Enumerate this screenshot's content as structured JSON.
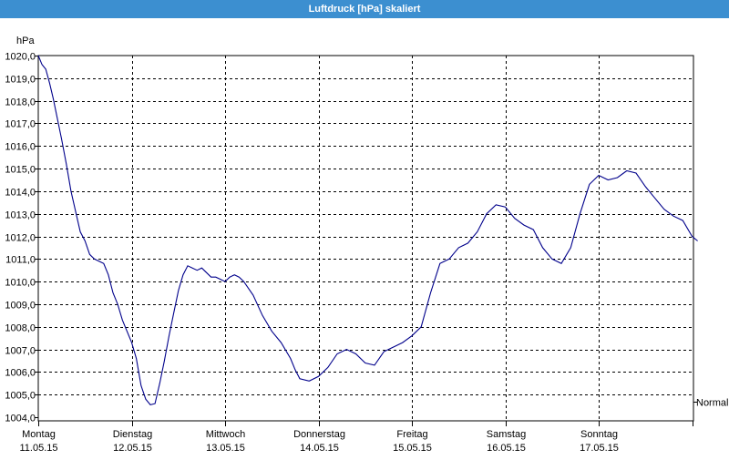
{
  "window": {
    "title": "Luftdruck [hPa] skaliert"
  },
  "chart_data": {
    "type": "line",
    "title": "Luftdruck [hPa] skaliert",
    "ylabel": "hPa",
    "ylim": [
      1004.0,
      1020.0
    ],
    "y_ticks": [
      "1020,0",
      "1019,0",
      "1018,0",
      "1017,0",
      "1016,0",
      "1015,0",
      "1014,0",
      "1013,0",
      "1012,0",
      "1011,0",
      "1010,0",
      "1009,0",
      "1008,0",
      "1007,0",
      "1006,0",
      "1005,0",
      "1004,0"
    ],
    "x_days": [
      {
        "day": "Montag",
        "date": "11.05.15"
      },
      {
        "day": "Dienstag",
        "date": "12.05.15"
      },
      {
        "day": "Mittwoch",
        "date": "13.05.15"
      },
      {
        "day": "Donnerstag",
        "date": "14.05.15"
      },
      {
        "day": "Freitag",
        "date": "15.05.15"
      },
      {
        "day": "Samstag",
        "date": "16.05.15"
      },
      {
        "day": "Sonntag",
        "date": "17.05.15"
      }
    ],
    "xlim_days": [
      0,
      7.1
    ],
    "grid": true,
    "reference_line": {
      "label": "Normal",
      "value": 1004.7
    },
    "series": [
      {
        "color": "#00008b",
        "x": [
          0,
          0.04,
          0.08,
          0.12,
          0.16,
          0.2,
          0.25,
          0.3,
          0.35,
          0.4,
          0.45,
          0.5,
          0.55,
          0.6,
          0.65,
          0.7,
          0.75,
          0.8,
          0.85,
          0.9,
          0.95,
          1.0,
          1.05,
          1.1,
          1.15,
          1.2,
          1.25,
          1.3,
          1.35,
          1.4,
          1.45,
          1.5,
          1.55,
          1.6,
          1.65,
          1.7,
          1.75,
          1.8,
          1.85,
          1.9,
          1.95,
          2.0,
          2.05,
          2.1,
          2.15,
          2.2,
          2.3,
          2.4,
          2.5,
          2.6,
          2.7,
          2.75,
          2.8,
          2.9,
          3.0,
          3.1,
          3.2,
          3.3,
          3.4,
          3.5,
          3.6,
          3.7,
          3.8,
          3.9,
          4.0,
          4.1,
          4.2,
          4.3,
          4.4,
          4.5,
          4.6,
          4.7,
          4.8,
          4.9,
          5.0,
          5.1,
          5.2,
          5.3,
          5.4,
          5.5,
          5.6,
          5.7,
          5.8,
          5.9,
          6.0,
          6.1,
          6.2,
          6.3,
          6.4,
          6.5,
          6.6,
          6.7,
          6.8,
          6.9,
          7.0,
          7.06
        ],
        "y": [
          1020.0,
          1019.6,
          1019.4,
          1018.8,
          1018.1,
          1017.3,
          1016.3,
          1015.2,
          1014.0,
          1013.1,
          1012.2,
          1011.8,
          1011.2,
          1011.0,
          1010.9,
          1010.8,
          1010.3,
          1009.5,
          1009.0,
          1008.3,
          1007.8,
          1007.3,
          1006.6,
          1005.4,
          1004.8,
          1004.55,
          1004.6,
          1005.5,
          1006.5,
          1007.6,
          1008.6,
          1009.6,
          1010.3,
          1010.7,
          1010.6,
          1010.5,
          1010.6,
          1010.4,
          1010.2,
          1010.2,
          1010.1,
          1010.0,
          1010.2,
          1010.3,
          1010.2,
          1010.0,
          1009.4,
          1008.5,
          1007.8,
          1007.3,
          1006.6,
          1006.1,
          1005.7,
          1005.6,
          1005.8,
          1006.2,
          1006.8,
          1007.0,
          1006.8,
          1006.4,
          1006.3,
          1006.9,
          1007.1,
          1007.3,
          1007.6,
          1008.0,
          1009.5,
          1010.8,
          1011.0,
          1011.5,
          1011.7,
          1012.2,
          1013.0,
          1013.4,
          1013.3,
          1012.8,
          1012.5,
          1012.3,
          1011.5,
          1011.0,
          1010.8,
          1011.5,
          1013.0,
          1014.3,
          1014.7,
          1014.5,
          1014.6,
          1014.9,
          1014.8,
          1014.2,
          1013.7,
          1013.2,
          1012.9,
          1012.7,
          1012.0,
          1011.8
        ]
      }
    ]
  }
}
